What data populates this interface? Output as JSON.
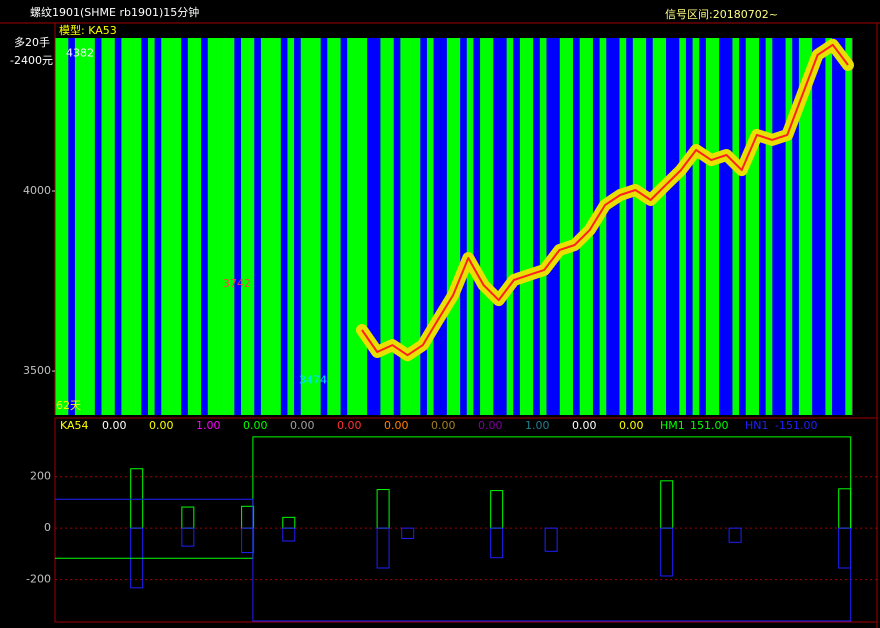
{
  "window": {
    "title": "螺纹1901(SHME rb1901)15分钟",
    "signal_range": "信号区间:20180702~"
  },
  "chart_data": [
    {
      "type": "signal-price",
      "model_label": "模型: KA53",
      "position_label": "多20手",
      "pnl_label": "-2400元",
      "days_label": "62天",
      "ylim": [
        3378,
        4425
      ],
      "yticks": [
        3500,
        4000
      ],
      "annotations": [
        {
          "text": "4382",
          "value": 4382,
          "color": "#ffffff"
        },
        {
          "text": "3742",
          "value": 3742,
          "color": "#ff4040"
        },
        {
          "text": "3474",
          "value": 3474,
          "color": "#00e0ff"
        }
      ],
      "signal": {
        "colors": [
          "#0000ff",
          "#00ff00"
        ],
        "values": [
          1,
          1,
          0,
          1,
          1,
          1,
          0,
          1,
          1,
          0,
          1,
          1,
          1,
          0,
          1,
          0,
          1,
          1,
          1,
          0,
          1,
          1,
          0,
          1,
          1,
          1,
          1,
          0,
          1,
          1,
          0,
          1,
          1,
          1,
          0,
          1,
          0,
          1,
          1,
          1,
          0,
          1,
          1,
          0,
          1,
          1,
          1,
          0,
          0,
          1,
          1,
          0,
          1,
          1,
          1,
          0,
          1,
          0,
          0,
          1,
          1,
          0,
          1,
          0,
          1,
          1,
          0,
          0,
          1,
          0,
          1,
          1,
          0,
          1,
          0,
          0,
          1,
          1,
          0,
          1,
          1,
          0,
          1,
          0,
          0,
          1,
          0,
          1,
          1,
          0,
          1,
          1,
          0,
          0,
          1,
          0,
          1,
          0,
          1,
          1,
          0,
          0,
          1,
          0,
          1,
          1,
          0,
          1,
          0,
          0,
          1,
          0,
          1,
          1,
          0,
          0,
          1,
          0,
          0,
          1
        ]
      },
      "values": [
        3614,
        3553,
        3572,
        3544,
        3572,
        3642,
        3711,
        3814,
        3739,
        3697,
        3753,
        3767,
        3781,
        3836,
        3850,
        3892,
        3961,
        3989,
        4003,
        3975,
        4017,
        4058,
        4114,
        4086,
        4100,
        4058,
        4156,
        4142,
        4156,
        4267,
        4378,
        4406,
        4350
      ],
      "color": "#e8e000",
      "line_color": "#ff2020"
    },
    {
      "type": "indicator",
      "name": "KA54",
      "readouts": [
        {
          "value": 0,
          "label": "0.00",
          "color": "#ffffff"
        },
        {
          "value": 0,
          "label": "0.00",
          "color": "#ffff00"
        },
        {
          "value": 1,
          "label": "1.00",
          "color": "#ff00ff"
        },
        {
          "value": 0,
          "label": "0.00",
          "color": "#00ff00"
        },
        {
          "value": 0,
          "label": "0.00",
          "color": "#a0a0a0"
        },
        {
          "value": 0,
          "label": "0.00",
          "color": "#ff3030"
        },
        {
          "value": 0,
          "label": "0.00",
          "color": "#ff8000"
        },
        {
          "value": 0,
          "label": "0.00",
          "color": "#a08020"
        },
        {
          "value": 0,
          "label": "0.00",
          "color": "#8000a0"
        },
        {
          "value": 1,
          "label": "1.00",
          "color": "#208090"
        },
        {
          "value": 0,
          "label": "0.00",
          "color": "#ffffff"
        },
        {
          "value": 0,
          "label": "0.00",
          "color": "#ffff00"
        }
      ],
      "xlim": [
        0,
        120
      ],
      "ylim": [
        -365,
        370
      ],
      "yticks": [
        -200,
        0,
        200
      ],
      "series": [
        {
          "name": "HM1",
          "last": 151,
          "last_label": "151.00",
          "color": "#00ff00",
          "x": [
            0,
            29.8,
            29.8,
            119.8,
            119.8
          ],
          "values": [
            -117,
            -117,
            355,
            355,
            0
          ]
        },
        {
          "name": "HN1",
          "last": -151,
          "last_label": "-151.00",
          "color": "#2020ff",
          "x": [
            0,
            29.8,
            29.8,
            119.8,
            119.8
          ],
          "values": [
            112,
            112,
            -361,
            -361,
            0
          ]
        }
      ],
      "bars_up": {
        "color": "#00ff00",
        "x": [
          12.3,
          20,
          29,
          35.2,
          49.4,
          66.5,
          92.1,
          118.9
        ],
        "values": [
          231,
          82,
          85,
          42,
          150,
          146,
          184,
          153
        ]
      },
      "bars_down": {
        "color": "#2020ff",
        "x": [
          12.3,
          20,
          29,
          35.2,
          49.4,
          53.1,
          66.5,
          74.7,
          92.1,
          102.4,
          118.9
        ],
        "values": [
          -232,
          -70,
          -95,
          -50,
          -155,
          -40,
          -115,
          -90,
          -186,
          -55,
          -155
        ]
      }
    }
  ]
}
